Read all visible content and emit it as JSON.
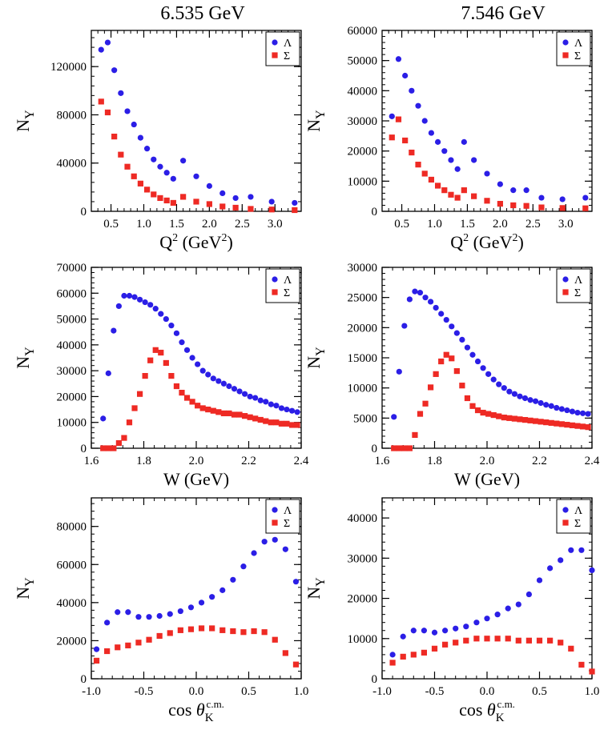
{
  "columns": [
    "6.535 GeV",
    "7.546 GeV"
  ],
  "legend": {
    "lambda": "Λ",
    "sigma": "Σ"
  },
  "colors": {
    "lambda": "#2b1ee6",
    "sigma": "#ee2a24",
    "axis": "#000000"
  },
  "chart_data": [
    {
      "type": "scatter",
      "title": "6.535 GeV",
      "xlabel": "Q2 (GeV2)",
      "ylabel": "NY",
      "xlim": [
        0.2,
        3.4
      ],
      "ylim": [
        0,
        150000
      ],
      "xticks": [
        0.5,
        1.0,
        1.5,
        2.0,
        2.5,
        3.0
      ],
      "xticklabels": [
        "0.5",
        "1.0",
        "1.5",
        "2.0",
        "2.5",
        "3.0"
      ],
      "yticks": [
        0,
        40000,
        80000,
        120000
      ],
      "yticklabels": [
        "0",
        "40000",
        "80000",
        "120000"
      ],
      "series": [
        {
          "name": "Λ",
          "x": [
            0.35,
            0.45,
            0.55,
            0.65,
            0.75,
            0.85,
            0.95,
            1.05,
            1.15,
            1.25,
            1.35,
            1.45,
            1.6,
            1.8,
            2.0,
            2.2,
            2.4,
            2.63,
            2.95,
            3.3
          ],
          "y": [
            134000,
            140000,
            117000,
            98000,
            83000,
            72000,
            61000,
            52000,
            43000,
            37000,
            32000,
            27000,
            42000,
            29000,
            21000,
            15000,
            11000,
            12000,
            8000,
            7000
          ]
        },
        {
          "name": "Σ",
          "x": [
            0.35,
            0.45,
            0.55,
            0.65,
            0.75,
            0.85,
            0.95,
            1.05,
            1.15,
            1.25,
            1.35,
            1.45,
            1.6,
            1.8,
            2.0,
            2.2,
            2.4,
            2.63,
            2.95,
            3.3
          ],
          "y": [
            91000,
            82000,
            62000,
            47000,
            37000,
            29000,
            23000,
            18000,
            14000,
            11000,
            9000,
            7000,
            12000,
            8000,
            6000,
            4000,
            3000,
            2000,
            1500,
            1000
          ]
        }
      ]
    },
    {
      "type": "scatter",
      "title": "7.546 GeV",
      "xlabel": "Q2 (GeV2)",
      "ylabel": "NY",
      "xlim": [
        0.2,
        3.4
      ],
      "ylim": [
        0,
        60000
      ],
      "xticks": [
        0.5,
        1.0,
        1.5,
        2.0,
        2.5,
        3.0
      ],
      "xticklabels": [
        "0.5",
        "1.0",
        "1.5",
        "2.0",
        "2.5",
        "3.0"
      ],
      "yticks": [
        0,
        10000,
        20000,
        30000,
        40000,
        50000,
        60000
      ],
      "yticklabels": [
        "0",
        "10000",
        "20000",
        "30000",
        "40000",
        "50000",
        "60000"
      ],
      "series": [
        {
          "name": "Λ",
          "x": [
            0.35,
            0.45,
            0.55,
            0.65,
            0.75,
            0.85,
            0.95,
            1.05,
            1.15,
            1.25,
            1.35,
            1.45,
            1.6,
            1.8,
            2.0,
            2.2,
            2.4,
            2.63,
            2.95,
            3.3
          ],
          "y": [
            31500,
            50500,
            45000,
            40000,
            35000,
            30000,
            26000,
            23000,
            20000,
            17000,
            14000,
            23000,
            17000,
            12500,
            9000,
            7000,
            7000,
            4500,
            4000,
            4500
          ]
        },
        {
          "name": "Σ",
          "x": [
            0.35,
            0.45,
            0.55,
            0.65,
            0.75,
            0.85,
            0.95,
            1.05,
            1.15,
            1.25,
            1.35,
            1.45,
            1.6,
            1.8,
            2.0,
            2.2,
            2.4,
            2.63,
            2.95,
            3.3
          ],
          "y": [
            24500,
            30500,
            23500,
            19500,
            15500,
            12500,
            10500,
            8500,
            7000,
            5500,
            4500,
            7000,
            5000,
            3500,
            2500,
            2000,
            1800,
            1300,
            1100,
            1000
          ]
        }
      ]
    },
    {
      "type": "scatter",
      "title": "",
      "xlabel": "W (GeV)",
      "ylabel": "NY",
      "xlim": [
        1.6,
        2.4
      ],
      "ylim": [
        0,
        70000
      ],
      "xticks": [
        1.6,
        1.8,
        2.0,
        2.2,
        2.4
      ],
      "xticklabels": [
        "1.6",
        "1.8",
        "2.0",
        "2.2",
        "2.4"
      ],
      "yticks": [
        0,
        10000,
        20000,
        30000,
        40000,
        50000,
        60000,
        70000
      ],
      "yticklabels": [
        "0",
        "10000",
        "20000",
        "30000",
        "40000",
        "50000",
        "60000",
        "70000"
      ],
      "series": [
        {
          "name": "Λ",
          "x": [
            1.645,
            1.665,
            1.685,
            1.705,
            1.725,
            1.745,
            1.765,
            1.785,
            1.805,
            1.825,
            1.845,
            1.865,
            1.885,
            1.905,
            1.925,
            1.945,
            1.965,
            1.985,
            2.005,
            2.025,
            2.045,
            2.065,
            2.085,
            2.105,
            2.125,
            2.145,
            2.165,
            2.185,
            2.205,
            2.225,
            2.245,
            2.265,
            2.285,
            2.305,
            2.325,
            2.345,
            2.365,
            2.385
          ],
          "y": [
            11500,
            29000,
            45500,
            55000,
            59000,
            59000,
            58500,
            57500,
            56500,
            55500,
            54000,
            52000,
            50000,
            47500,
            44500,
            41000,
            38000,
            35000,
            32500,
            30000,
            28500,
            27000,
            26000,
            25000,
            24000,
            23000,
            22000,
            21000,
            20000,
            19500,
            18500,
            18000,
            17000,
            16500,
            15500,
            15000,
            14500,
            14000
          ]
        },
        {
          "name": "Σ",
          "x": [
            1.645,
            1.665,
            1.685,
            1.705,
            1.725,
            1.745,
            1.765,
            1.785,
            1.805,
            1.825,
            1.845,
            1.865,
            1.885,
            1.905,
            1.925,
            1.945,
            1.965,
            1.985,
            2.005,
            2.025,
            2.045,
            2.065,
            2.085,
            2.105,
            2.125,
            2.145,
            2.165,
            2.185,
            2.205,
            2.225,
            2.245,
            2.265,
            2.285,
            2.305,
            2.325,
            2.345,
            2.365,
            2.385
          ],
          "y": [
            0,
            0,
            0,
            2000,
            4000,
            10000,
            15500,
            21000,
            28000,
            34000,
            38000,
            37000,
            33000,
            28000,
            24000,
            21500,
            19500,
            18000,
            16500,
            15500,
            15000,
            14500,
            14000,
            13500,
            13500,
            13000,
            13000,
            12500,
            12000,
            11500,
            11000,
            10500,
            10000,
            10000,
            9500,
            9500,
            9000,
            9000
          ]
        }
      ]
    },
    {
      "type": "scatter",
      "title": "",
      "xlabel": "W (GeV)",
      "ylabel": "NY",
      "xlim": [
        1.6,
        2.4
      ],
      "ylim": [
        0,
        30000
      ],
      "xticks": [
        1.6,
        1.8,
        2.0,
        2.2,
        2.4
      ],
      "xticklabels": [
        "1.6",
        "1.8",
        "2.0",
        "2.2",
        "2.4"
      ],
      "yticks": [
        0,
        5000,
        10000,
        15000,
        20000,
        25000,
        30000
      ],
      "yticklabels": [
        "0",
        "5000",
        "10000",
        "15000",
        "20000",
        "25000",
        "30000"
      ],
      "series": [
        {
          "name": "Λ",
          "x": [
            1.645,
            1.665,
            1.685,
            1.705,
            1.725,
            1.745,
            1.765,
            1.785,
            1.805,
            1.825,
            1.845,
            1.865,
            1.885,
            1.905,
            1.925,
            1.945,
            1.965,
            1.985,
            2.005,
            2.025,
            2.045,
            2.065,
            2.085,
            2.105,
            2.125,
            2.145,
            2.165,
            2.185,
            2.205,
            2.225,
            2.245,
            2.265,
            2.285,
            2.305,
            2.325,
            2.345,
            2.365,
            2.385
          ],
          "y": [
            5200,
            12700,
            20300,
            24700,
            26000,
            25800,
            25000,
            24300,
            23300,
            22300,
            21300,
            20200,
            19100,
            18000,
            16700,
            15500,
            14400,
            13300,
            12300,
            11400,
            10600,
            10000,
            9400,
            9000,
            8600,
            8300,
            8000,
            7800,
            7500,
            7200,
            7000,
            6700,
            6500,
            6300,
            6100,
            5900,
            5800,
            5700
          ]
        },
        {
          "name": "Σ",
          "x": [
            1.645,
            1.665,
            1.685,
            1.705,
            1.725,
            1.745,
            1.765,
            1.785,
            1.805,
            1.825,
            1.845,
            1.865,
            1.885,
            1.905,
            1.925,
            1.945,
            1.965,
            1.985,
            2.005,
            2.025,
            2.045,
            2.065,
            2.085,
            2.105,
            2.125,
            2.145,
            2.165,
            2.185,
            2.205,
            2.225,
            2.245,
            2.265,
            2.285,
            2.305,
            2.325,
            2.345,
            2.365,
            2.385
          ],
          "y": [
            0,
            0,
            0,
            0,
            2200,
            5700,
            7400,
            10100,
            12300,
            14400,
            15500,
            14900,
            12800,
            10400,
            8300,
            7000,
            6300,
            5900,
            5700,
            5500,
            5300,
            5100,
            5000,
            4900,
            4800,
            4700,
            4600,
            4500,
            4400,
            4300,
            4200,
            4100,
            4000,
            3900,
            3800,
            3700,
            3600,
            3500
          ]
        }
      ]
    },
    {
      "type": "scatter",
      "title": "",
      "xlabel": "cos θK c.m.",
      "ylabel": "NY",
      "xlim": [
        -1.0,
        1.0
      ],
      "ylim": [
        0,
        95000
      ],
      "xticks": [
        -1.0,
        -0.5,
        0.0,
        0.5,
        1.0
      ],
      "xticklabels": [
        "-1.0",
        "-0.5",
        "0.0",
        "0.5",
        "1.0"
      ],
      "yticks": [
        0,
        20000,
        40000,
        60000,
        80000
      ],
      "yticklabels": [
        "0",
        "20000",
        "40000",
        "60000",
        "80000"
      ],
      "series": [
        {
          "name": "Λ",
          "x": [
            -0.95,
            -0.85,
            -0.75,
            -0.65,
            -0.55,
            -0.45,
            -0.35,
            -0.25,
            -0.15,
            -0.05,
            0.05,
            0.15,
            0.25,
            0.35,
            0.45,
            0.55,
            0.65,
            0.75,
            0.85,
            0.95
          ],
          "y": [
            15500,
            29500,
            35000,
            35000,
            32500,
            32500,
            33000,
            34000,
            35500,
            37500,
            40000,
            43000,
            46500,
            52000,
            59000,
            66000,
            72000,
            73000,
            68000,
            51000
          ]
        },
        {
          "name": "Σ",
          "x": [
            -0.95,
            -0.85,
            -0.75,
            -0.65,
            -0.55,
            -0.45,
            -0.35,
            -0.25,
            -0.15,
            -0.05,
            0.05,
            0.15,
            0.25,
            0.35,
            0.45,
            0.55,
            0.65,
            0.75,
            0.85,
            0.95
          ],
          "y": [
            9500,
            14500,
            16500,
            17500,
            19000,
            20500,
            22500,
            24000,
            25500,
            26000,
            26500,
            26500,
            25500,
            25000,
            24500,
            25000,
            24500,
            20500,
            13500,
            7500
          ]
        }
      ]
    },
    {
      "type": "scatter",
      "title": "",
      "xlabel": "cos θK c.m.",
      "ylabel": "NY",
      "xlim": [
        -1.0,
        1.0
      ],
      "ylim": [
        0,
        45000
      ],
      "xticks": [
        -1.0,
        -0.5,
        0.0,
        0.5,
        1.0
      ],
      "xticklabels": [
        "-1.0",
        "-0.5",
        "0.0",
        "0.5",
        "1.0"
      ],
      "yticks": [
        0,
        10000,
        20000,
        30000,
        40000
      ],
      "yticklabels": [
        "0",
        "10000",
        "20000",
        "30000",
        "40000"
      ],
      "series": [
        {
          "name": "Λ",
          "x": [
            -0.9,
            -0.8,
            -0.7,
            -0.6,
            -0.5,
            -0.4,
            -0.3,
            -0.2,
            -0.1,
            0.0,
            0.1,
            0.2,
            0.3,
            0.4,
            0.5,
            0.6,
            0.7,
            0.8,
            0.9,
            1.0
          ],
          "y": [
            6000,
            10500,
            12000,
            12000,
            11500,
            12000,
            12500,
            13000,
            14000,
            15000,
            16000,
            17500,
            18500,
            21000,
            24500,
            27500,
            29500,
            32000,
            32000,
            27000
          ]
        },
        {
          "name": "Σ",
          "x": [
            -0.9,
            -0.8,
            -0.7,
            -0.6,
            -0.5,
            -0.4,
            -0.3,
            -0.2,
            -0.1,
            0.0,
            0.1,
            0.2,
            0.3,
            0.4,
            0.5,
            0.6,
            0.7,
            0.8,
            0.9,
            1.0
          ],
          "y": [
            4000,
            5500,
            6000,
            6500,
            7500,
            8500,
            9000,
            9500,
            10000,
            10000,
            10000,
            10000,
            9500,
            9500,
            9500,
            9500,
            9000,
            7500,
            3500,
            1800
          ]
        }
      ]
    }
  ]
}
